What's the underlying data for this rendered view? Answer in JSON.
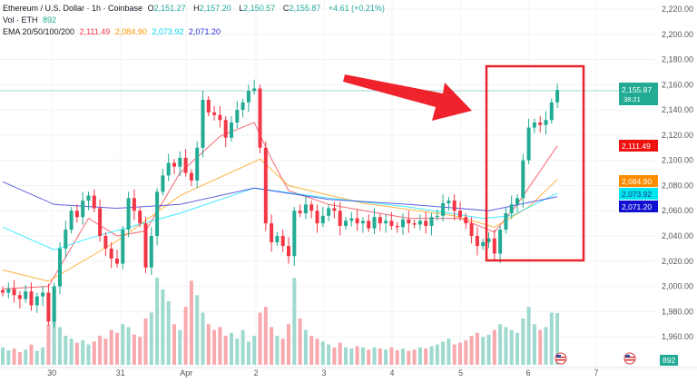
{
  "header": {
    "symbol": "Ethereum / U.S. Dollar · 1h · Coinbase",
    "open_label": "O",
    "open": "2,151.27",
    "high_label": "H",
    "high": "2,157.20",
    "low_label": "L",
    "low": "2,150.57",
    "close_label": "C",
    "close": "2,155.87",
    "change": "+4.61 (+0.21%)",
    "vol_label": "Vol · ETH",
    "vol": "892",
    "ema_label": "EMA 20/50/100/200",
    "ema_values": [
      "2,111.49",
      "2,084.90",
      "2,073.92",
      "2,071.20"
    ]
  },
  "price_tags": {
    "last": "2,155.87",
    "countdown": "38:21",
    "ema20": "2,111.49",
    "ema50": "2,084.90",
    "ema100": "2,073.92",
    "ema200": "2,071.20",
    "volume": "892"
  },
  "colors": {
    "up": "#22ab94",
    "down": "#f23645",
    "ema20": "#f23645",
    "ema50": "#ff9800",
    "ema100": "#00e5ff",
    "ema200": "#2a2ad8",
    "annotation": "#f0232d"
  },
  "chart_data": {
    "type": "candlestick",
    "ylim": [
      1950,
      2225
    ],
    "y_ticks": [
      "2,220.00",
      "2,200.00",
      "2,180.00",
      "2,160.00",
      "2,140.00",
      "2,120.00",
      "2,100.00",
      "2,080.00",
      "2,060.00",
      "2,040.00",
      "2,020.00",
      "2,000.00",
      "1,980.00",
      "1,960.00"
    ],
    "y_tick_values": [
      2220,
      2200,
      2180,
      2160,
      2140,
      2120,
      2100,
      2080,
      2060,
      2040,
      2020,
      2000,
      1980,
      1960
    ],
    "x_ticks": [
      "30",
      "31",
      "Apr",
      "2",
      "3",
      "4",
      "5",
      "6",
      "7"
    ],
    "x_tick_index": [
      8.6,
      20.6,
      32.1,
      44.3,
      56.2,
      68.1,
      80.1,
      91.9,
      103.8
    ],
    "grid": true,
    "close": [
      1995,
      1998,
      1993,
      1990,
      1996,
      1985,
      1992,
      1995,
      1972,
      2000,
      2030,
      2045,
      2060,
      2055,
      2068,
      2072,
      2062,
      2040,
      2030,
      2022,
      2018,
      2045,
      2070,
      2060,
      2050,
      2015,
      2040,
      2075,
      2088,
      2098,
      2095,
      2102,
      2090,
      2084,
      2110,
      2148,
      2138,
      2136,
      2132,
      2118,
      2130,
      2140,
      2146,
      2155,
      2157,
      2110,
      2050,
      2035,
      2040,
      2032,
      2024,
      2060,
      2058,
      2065,
      2060,
      2050,
      2056,
      2062,
      2060,
      2048,
      2052,
      2054,
      2050,
      2052,
      2046,
      2055,
      2050,
      2052,
      2048,
      2047,
      2053,
      2050,
      2049,
      2052,
      2048,
      2055,
      2056,
      2066,
      2068,
      2060,
      2055,
      2050,
      2040,
      2032,
      2035,
      2038,
      2026,
      2045,
      2058,
      2065,
      2070,
      2100,
      2126,
      2130,
      2128,
      2132,
      2146,
      2155.87
    ],
    "volume": [
      300,
      250,
      280,
      220,
      260,
      350,
      240,
      300,
      700,
      900,
      650,
      500,
      450,
      380,
      420,
      350,
      400,
      500,
      450,
      600,
      550,
      700,
      650,
      520,
      480,
      800,
      900,
      1500,
      1300,
      1100,
      700,
      600,
      1000,
      1450,
      1200,
      900,
      700,
      600,
      650,
      500,
      550,
      450,
      600,
      400,
      500,
      900,
      1000,
      650,
      500,
      450,
      700,
      1500,
      800,
      600,
      500,
      450,
      400,
      350,
      300,
      380,
      300,
      280,
      320,
      300,
      260,
      300,
      280,
      260,
      300,
      250,
      280,
      240,
      260,
      300,
      280,
      320,
      350,
      400,
      450,
      350,
      380,
      420,
      500,
      550,
      480,
      520,
      600,
      700,
      650,
      600,
      550,
      800,
      1000,
      700,
      600,
      650,
      900,
      892
    ],
    "series": [
      {
        "name": "EMA 20",
        "points": [
          [
            0,
            1998
          ],
          [
            8,
            2000
          ],
          [
            15,
            2054
          ],
          [
            20,
            2040
          ],
          [
            25,
            2044
          ],
          [
            31,
            2090
          ],
          [
            38,
            2119
          ],
          [
            44,
            2130
          ],
          [
            47,
            2101
          ],
          [
            50,
            2076
          ],
          [
            57,
            2065
          ],
          [
            71,
            2054
          ],
          [
            80,
            2054
          ],
          [
            86,
            2043
          ],
          [
            90,
            2065
          ],
          [
            97,
            2111.49
          ]
        ]
      },
      {
        "name": "EMA 50",
        "points": [
          [
            0,
            2013
          ],
          [
            8,
            2004
          ],
          [
            20,
            2036
          ],
          [
            31,
            2072
          ],
          [
            45,
            2101
          ],
          [
            50,
            2080
          ],
          [
            63,
            2066
          ],
          [
            79,
            2056
          ],
          [
            86,
            2047
          ],
          [
            92,
            2063
          ],
          [
            97,
            2084.9
          ]
        ]
      },
      {
        "name": "EMA 100",
        "points": [
          [
            0,
            2047
          ],
          [
            9,
            2029
          ],
          [
            15,
            2038
          ],
          [
            31,
            2058
          ],
          [
            44,
            2078
          ],
          [
            57,
            2070
          ],
          [
            71,
            2063
          ],
          [
            84,
            2054
          ],
          [
            89,
            2056
          ],
          [
            97,
            2073.92
          ]
        ]
      },
      {
        "name": "EMA 200",
        "points": [
          [
            0,
            2083
          ],
          [
            9,
            2065
          ],
          [
            20,
            2062
          ],
          [
            31,
            2065
          ],
          [
            44,
            2078
          ],
          [
            57,
            2069
          ],
          [
            71,
            2065
          ],
          [
            85,
            2060
          ],
          [
            97,
            2071.2
          ]
        ]
      }
    ]
  }
}
